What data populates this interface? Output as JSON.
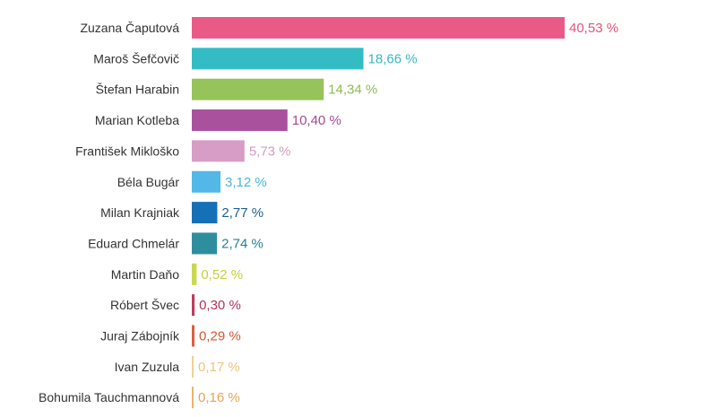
{
  "chart_data": {
    "type": "bar",
    "orientation": "horizontal",
    "categories": [
      "Zuzana Čaputová",
      "Maroš Šefčovič",
      "Štefan Harabin",
      "Marian Kotleba",
      "František Mikloško",
      "Béla Bugár",
      "Milan Krajniak",
      "Eduard Chmelár",
      "Martin Daňo",
      "Róbert Švec",
      "Juraj Zábojník",
      "Ivan Zuzula",
      "Bohumila Tauchmannová"
    ],
    "values": [
      40.53,
      18.66,
      14.34,
      10.4,
      5.73,
      3.12,
      2.77,
      2.74,
      0.52,
      0.3,
      0.29,
      0.17,
      0.16
    ],
    "value_labels": [
      "40,53 %",
      "18,66 %",
      "14,34 %",
      "10,40 %",
      "5,73 %",
      "3,12 %",
      "2,77 %",
      "2,74 %",
      "0,52 %",
      "0,30 %",
      "0,29 %",
      "0,17 %",
      "0,16 %"
    ],
    "colors": [
      "#ea5a87",
      "#34bcc5",
      "#97c45a",
      "#a9519d",
      "#d89dc6",
      "#52b8e8",
      "#1570b5",
      "#2f8e9e",
      "#c9d94f",
      "#c13b5d",
      "#d9603c",
      "#f3cf92",
      "#ebb36a"
    ],
    "label_colors": [
      "#e8527f",
      "#34b7c0",
      "#8fbd52",
      "#a34a97",
      "#d79bc4",
      "#4db3e3",
      "#1f5f93",
      "#2a7f8f",
      "#c3cf3f",
      "#b83355",
      "#d25a36",
      "#edc47f",
      "#e0a656"
    ],
    "title": "",
    "xlabel": "",
    "ylabel": "",
    "xlim": [
      0,
      40.53
    ],
    "grid": false,
    "legend": "none"
  }
}
